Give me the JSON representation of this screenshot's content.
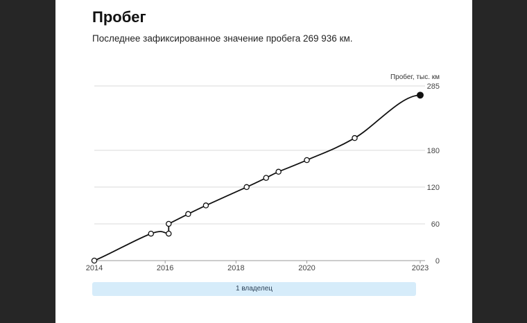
{
  "header": {
    "title": "Пробег",
    "subtitle": "Последнее зафиксированное значение пробега 269 936 км."
  },
  "owners": {
    "label": "1 владелец"
  },
  "colors": {
    "line": "#111111",
    "grid": "#d9d9d9",
    "owner_bar": "#d6ecfa",
    "background": "#262626"
  },
  "chart_data": {
    "type": "line",
    "ylabel": "Пробег, тыс. км",
    "x_ticks": [
      "2014",
      "2016",
      "2018",
      "2020",
      "2023"
    ],
    "x_tick_values": [
      2014.0,
      2016.0,
      2018.0,
      2020.0,
      2023.2
    ],
    "y_ticks": [
      0,
      60,
      120,
      180,
      285
    ],
    "xlim": [
      2014.0,
      2023.2
    ],
    "ylim": [
      0,
      285
    ],
    "grid": true,
    "series": [
      {
        "points": [
          {
            "x": 2014.0,
            "y": 0
          },
          {
            "x": 2015.6,
            "y": 44
          },
          {
            "x": 2016.1,
            "y": 44
          },
          {
            "x": 2016.1,
            "y": 60
          },
          {
            "x": 2016.65,
            "y": 76
          },
          {
            "x": 2017.15,
            "y": 90
          },
          {
            "x": 2018.3,
            "y": 120
          },
          {
            "x": 2018.85,
            "y": 135
          },
          {
            "x": 2019.2,
            "y": 145
          },
          {
            "x": 2020.0,
            "y": 164
          },
          {
            "x": 2021.35,
            "y": 200
          },
          {
            "x": 2023.2,
            "y": 270
          }
        ]
      }
    ]
  }
}
